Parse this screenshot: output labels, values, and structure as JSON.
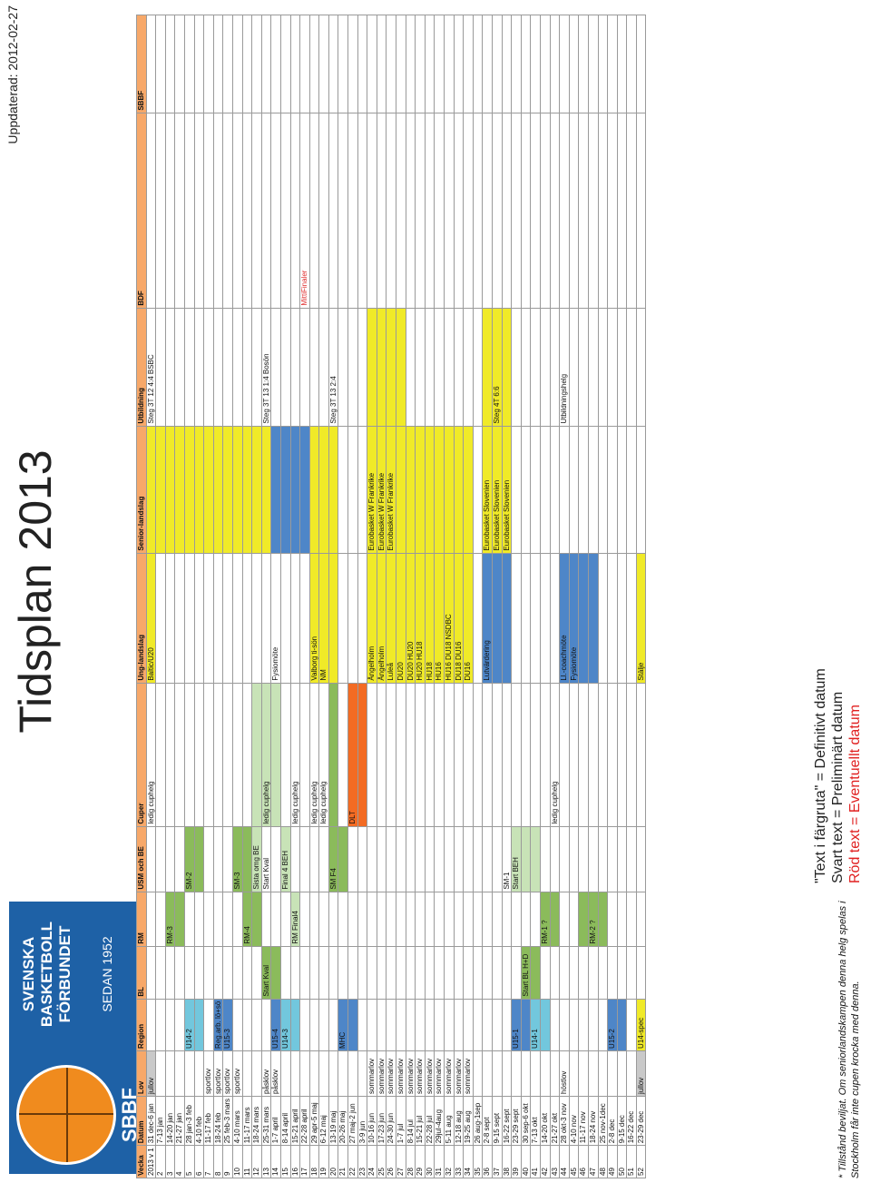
{
  "logo": {
    "abbr": "SBBF",
    "name": "SVENSKA BASKETBOLL FÖRBUNDET",
    "since": "SEDAN 1952"
  },
  "title": "Tidsplan 2013",
  "updated": "Uppdaterad: 2012-02-27",
  "columns": [
    "Vecka",
    "Datum",
    "Lov",
    "Region",
    "BL",
    "RM",
    "USM och BE",
    "Cuper",
    "Ung-landslag",
    "Senior-landslag",
    "Utbildning",
    "BDF",
    "SBBF"
  ],
  "rows": [
    [
      "2013 v 1",
      "31 dec-6 jan",
      "jullov",
      "",
      "",
      "",
      "",
      "ledig cuphelg",
      "Baltic/U20",
      "",
      "Steg 3T 12 4:4 BSBC",
      "",
      ""
    ],
    [
      "2",
      "7-13 jan",
      "",
      "",
      "",
      "",
      "",
      "",
      "",
      "",
      "",
      "",
      ""
    ],
    [
      "3",
      "14-20 jan",
      "",
      "",
      "",
      "RM-3",
      "",
      "",
      "",
      "",
      "",
      "",
      ""
    ],
    [
      "4",
      "21-27 jan",
      "",
      "",
      "",
      "",
      "",
      "",
      "",
      "",
      "",
      "",
      ""
    ],
    [
      "5",
      "28 jan-3 feb",
      "",
      "U14-2",
      "",
      "",
      "SM-2",
      "",
      "",
      "",
      "",
      "",
      ""
    ],
    [
      "6",
      "4-10 feb",
      "",
      "",
      "",
      "",
      "",
      "",
      "",
      "",
      "",
      "",
      ""
    ],
    [
      "7",
      "11-17 feb",
      "sportlov",
      "",
      "",
      "",
      "",
      "",
      "",
      "",
      "",
      "",
      ""
    ],
    [
      "8",
      "18-24 feb",
      "sportlov",
      "Reg.arb. lö+sö",
      "",
      "",
      "",
      "",
      "",
      "",
      "",
      "",
      ""
    ],
    [
      "9",
      "25 feb-3 mars",
      "sportlov",
      "U15-3",
      "",
      "",
      "",
      "",
      "",
      "",
      "",
      "",
      ""
    ],
    [
      "10",
      "4-10 mars",
      "sportlov",
      "",
      "",
      "",
      "SM-3",
      "",
      "",
      "",
      "",
      "",
      ""
    ],
    [
      "11",
      "11-17 mars",
      "",
      "",
      "",
      "RM-4",
      "",
      "",
      "",
      "",
      "",
      "",
      ""
    ],
    [
      "12",
      "18-24 mars",
      "",
      "",
      "",
      "",
      "Sista omg BE",
      "",
      "",
      "",
      "",
      "",
      ""
    ],
    [
      "13",
      "25-31 mars",
      "påsklov",
      "",
      "Start Kval",
      "",
      "Start Kval",
      "ledig cuphelg",
      "",
      "",
      "Steg 3T 13 1:4 Bosön",
      "",
      ""
    ],
    [
      "14",
      "1-7 april",
      "påsklov",
      "U15-4",
      "",
      "",
      "",
      "",
      "Fysiomöte",
      "",
      "",
      "",
      ""
    ],
    [
      "15",
      "8-14 april",
      "",
      "U14-3",
      "",
      "",
      "Final 4 BEH",
      "",
      "",
      "",
      "",
      "",
      ""
    ],
    [
      "16",
      "15-21 april",
      "",
      "",
      "",
      "RM Final4",
      "",
      "ledig cuphelg",
      "",
      "",
      "",
      "",
      ""
    ],
    [
      "17",
      "22-28 april",
      "",
      "",
      "",
      "",
      "",
      "",
      "",
      "",
      "",
      "MittiFinaler",
      ""
    ],
    [
      "18",
      "29 apr-5 maj",
      "",
      "",
      "",
      "",
      "",
      "ledig cuphelg",
      "Valborg ti-sön",
      "",
      "",
      "",
      ""
    ],
    [
      "19",
      "6-12 maj",
      "",
      "",
      "",
      "",
      "",
      "ledig cuphelg",
      "NM",
      "",
      "",
      "",
      ""
    ],
    [
      "20",
      "13-19 maj",
      "",
      "",
      "",
      "",
      "SM F4",
      "",
      "",
      "",
      "Steg 3T 13 2:4",
      "",
      ""
    ],
    [
      "21",
      "20-26 maj",
      "",
      "MHC",
      "",
      "",
      "",
      "",
      "",
      "",
      "",
      "",
      ""
    ],
    [
      "22",
      "27 maj-2 jun",
      "",
      "",
      "",
      "",
      "",
      "DLT",
      "",
      "",
      "",
      "",
      ""
    ],
    [
      "23",
      "3-9 jun",
      "",
      "",
      "",
      "",
      "",
      "",
      "",
      "",
      "",
      "",
      ""
    ],
    [
      "24",
      "10-16 jun",
      "sommarlov",
      "",
      "",
      "",
      "",
      "",
      "Ängelholm",
      "Eurobasket W Frankrike",
      "",
      "",
      ""
    ],
    [
      "25",
      "17-23 jun",
      "sommarlov",
      "",
      "",
      "",
      "",
      "",
      "Ängelholm",
      "Eurobasket W Frankrike",
      "",
      "",
      ""
    ],
    [
      "26",
      "24-30 jun",
      "sommarlov",
      "",
      "",
      "",
      "",
      "",
      "Luleå",
      "Eurobasket W Frankrike",
      "",
      "",
      ""
    ],
    [
      "27",
      "1-7 jul",
      "sommarlov",
      "",
      "",
      "",
      "",
      "",
      "DU20",
      "",
      "",
      "",
      ""
    ],
    [
      "28",
      "8-14 jul",
      "sommarlov",
      "",
      "",
      "",
      "",
      "",
      "DU20 HU20",
      "",
      "",
      "",
      ""
    ],
    [
      "29",
      "15-21 jul",
      "sommarlov",
      "",
      "",
      "",
      "",
      "",
      "HU20 HU18",
      "",
      "",
      "",
      ""
    ],
    [
      "30",
      "22-28 jul",
      "sommarlov",
      "",
      "",
      "",
      "",
      "",
      "HU18",
      "",
      "",
      "",
      ""
    ],
    [
      "31",
      "29jul-4aug",
      "sommarlov",
      "",
      "",
      "",
      "",
      "",
      "HU16",
      "",
      "",
      "",
      ""
    ],
    [
      "32",
      "5-11 aug",
      "sommarlov",
      "",
      "",
      "",
      "",
      "",
      "HU16 DU18 NSDBC",
      "",
      "",
      "",
      ""
    ],
    [
      "33",
      "12-18 aug",
      "sommarlov",
      "",
      "",
      "",
      "",
      "",
      "DU18 DU16",
      "",
      "",
      "",
      ""
    ],
    [
      "34",
      "19-25 aug",
      "sommarlov",
      "",
      "",
      "",
      "",
      "",
      "DU16",
      "",
      "",
      "",
      ""
    ],
    [
      "35",
      "26 aug-1sep",
      "",
      "",
      "",
      "",
      "",
      "",
      "",
      "",
      "",
      "",
      ""
    ],
    [
      "36",
      "2-8 sept",
      "",
      "",
      "",
      "",
      "",
      "",
      "Lutvärdering",
      "Eurobasket Slovenien",
      "",
      "",
      ""
    ],
    [
      "37",
      "9-15 sept",
      "",
      "",
      "",
      "",
      "",
      "",
      "",
      "Eurobasket Slovenien",
      "Steg 4T 6:6",
      "",
      ""
    ],
    [
      "38",
      "16-22 sept",
      "",
      "",
      "",
      "",
      "SM-1",
      "",
      "",
      "Eurobasket Slovenien",
      "",
      "",
      ""
    ],
    [
      "39",
      "23-29 sept",
      "",
      "U15-1",
      "",
      "",
      "Start BEH",
      "",
      "",
      "",
      "",
      "",
      ""
    ],
    [
      "40",
      "30 sep-6 okt",
      "",
      "",
      "Start BL H+D",
      "",
      "",
      "",
      "",
      "",
      "",
      "",
      ""
    ],
    [
      "41",
      "7-13 okt",
      "",
      "U14-1",
      "",
      "",
      "",
      "",
      "",
      "",
      "",
      "",
      ""
    ],
    [
      "42",
      "14-20 okt",
      "",
      "",
      "",
      "RM-1 ?",
      "",
      "",
      "",
      "",
      "",
      "",
      ""
    ],
    [
      "43",
      "21-27 okt",
      "",
      "",
      "",
      "",
      "",
      "ledig cuphelg",
      "",
      "",
      "",
      "",
      ""
    ],
    [
      "44",
      "28 okt-3 nov",
      "höstlov",
      "",
      "",
      "",
      "",
      "",
      "Ll.-coachmöte",
      "",
      "Utbildningshelg",
      "",
      ""
    ],
    [
      "45",
      "4-10 nov",
      "",
      "",
      "",
      "",
      "",
      "",
      "Fysiomöte",
      "",
      "",
      "",
      ""
    ],
    [
      "46",
      "11-17 nov",
      "",
      "",
      "",
      "",
      "",
      "",
      "",
      "",
      "",
      "",
      ""
    ],
    [
      "47",
      "18-24 nov",
      "",
      "",
      "",
      "RM-2 ?",
      "",
      "",
      "",
      "",
      "",
      "",
      ""
    ],
    [
      "48",
      "25 nov-1dec",
      "",
      "",
      "",
      "",
      "",
      "",
      "",
      "",
      "",
      "",
      ""
    ],
    [
      "49",
      "2-8 dec",
      "",
      "U15-2",
      "",
      "",
      "",
      "",
      "",
      "",
      "",
      "",
      ""
    ],
    [
      "50",
      "9-15 dec",
      "",
      "",
      "",
      "",
      "",
      "",
      "",
      "",
      "",
      "",
      ""
    ],
    [
      "51",
      "16-22 dec",
      "",
      "",
      "",
      "",
      "",
      "",
      "",
      "",
      "",
      "",
      ""
    ],
    [
      "52",
      "23-29 dec",
      "jullov",
      "U14-spec",
      "",
      "",
      "",
      "",
      "Stälje",
      "",
      "",
      "",
      ""
    ]
  ],
  "highlights": {
    "0": {
      "2": "gray",
      "8": "yellow",
      "9": "yellow"
    },
    "1": {
      "9": "yellow"
    },
    "2": {
      "5": "green",
      "9": "yellow"
    },
    "3": {
      "5": "green",
      "9": "yellow"
    },
    "4": {
      "3": "lblue",
      "6": "green",
      "9": "yellow"
    },
    "5": {
      "3": "lblue",
      "6": "green",
      "9": "yellow"
    },
    "6": {
      "9": "yellow"
    },
    "7": {
      "3": "blue",
      "9": "yellow"
    },
    "8": {
      "3": "blue",
      "9": "yellow"
    },
    "9": {
      "6": "green",
      "9": "yellow"
    },
    "10": {
      "5": "green",
      "6": "green",
      "9": "yellow"
    },
    "11": {
      "5": "green",
      "6": "lgreen",
      "7": "lgreen",
      "9": "yellow"
    },
    "12": {
      "4": "green",
      "7": "lgreen",
      "9": "yellow"
    },
    "13": {
      "3": "blue",
      "4": "green",
      "7": "lgreen",
      "9": "blue"
    },
    "14": {
      "3": "lblue",
      "6": "lgreen",
      "9": "blue"
    },
    "15": {
      "3": "lblue",
      "5": "lgreen",
      "9": "blue"
    },
    "16": {
      "9": "blue"
    },
    "17": {
      "8": "yellow",
      "9": "yellow"
    },
    "18": {
      "8": "yellow",
      "9": "yellow"
    },
    "19": {
      "6": "green",
      "7": "green",
      "8": "yellow",
      "9": "yellow"
    },
    "20": {
      "3": "blue",
      "6": "green"
    },
    "21": {
      "3": "blue",
      "7": "orange"
    },
    "22": {
      "7": "orange"
    },
    "23": {
      "8": "yellow",
      "9": "yellow",
      "10": "yellow"
    },
    "24": {
      "8": "yellow",
      "9": "yellow",
      "10": "yellow"
    },
    "25": {
      "8": "yellow",
      "9": "yellow",
      "10": "yellow"
    },
    "26": {
      "8": "yellow",
      "9": "yellow",
      "10": "yellow"
    },
    "27": {
      "8": "yellow",
      "9": "yellow"
    },
    "28": {
      "8": "yellow",
      "9": "yellow"
    },
    "29": {
      "8": "yellow",
      "9": "yellow"
    },
    "30": {
      "8": "yellow",
      "9": "yellow"
    },
    "31": {
      "8": "yellow",
      "9": "yellow"
    },
    "32": {
      "8": "yellow",
      "9": "yellow"
    },
    "33": {
      "8": "yellow",
      "9": "yellow"
    },
    "35": {
      "8": "blue",
      "9": "yellow",
      "10": "yellow"
    },
    "36": {
      "8": "blue",
      "9": "yellow",
      "10": "yellow"
    },
    "37": {
      "8": "blue",
      "9": "yellow",
      "10": "yellow"
    },
    "38": {
      "3": "blue",
      "6": "lgreen"
    },
    "39": {
      "3": "blue",
      "4": "green",
      "6": "lgreen"
    },
    "40": {
      "3": "lblue",
      "4": "green",
      "6": "lgreen"
    },
    "41": {
      "3": "lblue",
      "5": "green"
    },
    "42": {
      "5": "green"
    },
    "43": {
      "8": "blue"
    },
    "44": {
      "8": "blue"
    },
    "45": {
      "5": "green",
      "8": "blue"
    },
    "46": {
      "5": "green",
      "8": "blue"
    },
    "47": {
      "5": "green"
    },
    "48": {
      "3": "blue"
    },
    "49": {
      "3": "blue"
    },
    "51": {
      "2": "gray",
      "3": "yellow",
      "8": "yellow"
    }
  },
  "red_cells": {
    "16": {
      "11": true
    }
  },
  "legend": {
    "line1": "\"Text i färgruta\" = Definitivt datum",
    "line2": "Svart text = Preliminärt datum",
    "line3": "Röd text = Eventuellt datum"
  },
  "footnote": {
    "line1": "* Tillstånd beviljat. Om seniorlandskampen denna helg spelas i",
    "line2": "Stockholm får inte cupen krocka med denna."
  }
}
